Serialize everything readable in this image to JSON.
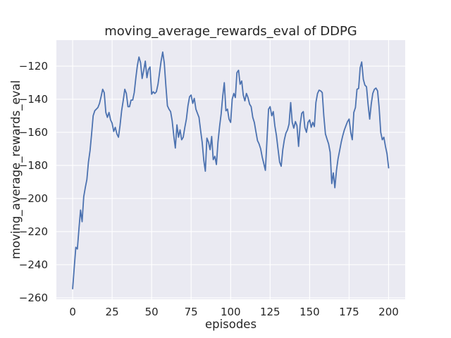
{
  "chart_data": {
    "type": "line",
    "title": "moving_average_rewards_eval of DDPG",
    "xlabel": "episodes",
    "ylabel": "moving_average_rewards_eval",
    "legend": "none",
    "grid": true,
    "x_ticks": [
      0,
      25,
      50,
      75,
      100,
      125,
      150,
      175,
      200
    ],
    "x_tick_labels": [
      "0",
      "25",
      "50",
      "75",
      "100",
      "125",
      "150",
      "175",
      "200"
    ],
    "y_ticks": [
      -260,
      -240,
      -220,
      -200,
      -180,
      -160,
      -140,
      -120
    ],
    "y_tick_labels": [
      "−260",
      "−240",
      "−220",
      "−200",
      "−180",
      "−160",
      "−140",
      "−120"
    ],
    "xlim": [
      -10.3,
      210.5
    ],
    "ylim": [
      -260.9,
      -104.3
    ],
    "series": [
      {
        "name": "moving_average_rewards_eval",
        "x_start": 0,
        "x_step": 1,
        "values": [
          -254.5,
          -242,
          -229.5,
          -230.5,
          -218,
          -207,
          -214,
          -199,
          -193.5,
          -188.5,
          -178,
          -171,
          -161,
          -150,
          -147,
          -146,
          -145,
          -142.5,
          -138.5,
          -134,
          -136,
          -148,
          -151,
          -148,
          -152.5,
          -154.5,
          -159.5,
          -157,
          -161,
          -163,
          -156,
          -147,
          -141,
          -134,
          -136.5,
          -144.5,
          -144.5,
          -140.5,
          -140.5,
          -136,
          -127,
          -119.5,
          -114.5,
          -118,
          -127.5,
          -122.5,
          -117,
          -127,
          -122,
          -120.5,
          -137,
          -135.5,
          -136.5,
          -135.5,
          -131,
          -124,
          -117,
          -111.5,
          -118,
          -132,
          -144,
          -146,
          -147.5,
          -153,
          -162,
          -169.5,
          -155.5,
          -163,
          -158.5,
          -164.5,
          -163,
          -157,
          -152,
          -144,
          -138.5,
          -137.5,
          -142.5,
          -139.5,
          -146,
          -148.5,
          -151,
          -159,
          -166,
          -177,
          -183.5,
          -163.5,
          -166,
          -170.5,
          -162.5,
          -176.5,
          -174.5,
          -179.5,
          -166,
          -156.5,
          -149,
          -138,
          -130,
          -147,
          -146,
          -152,
          -154,
          -140,
          -136.5,
          -139,
          -124,
          -122.5,
          -131,
          -129,
          -137.5,
          -141,
          -136.5,
          -139,
          -143,
          -144.5,
          -151,
          -154,
          -159.5,
          -165,
          -167,
          -170,
          -175,
          -179,
          -183,
          -165,
          -146,
          -144.5,
          -150,
          -147.5,
          -156,
          -162,
          -170,
          -178,
          -180.5,
          -170.5,
          -164.5,
          -160.5,
          -158.5,
          -155,
          -142,
          -154,
          -157.5,
          -153.5,
          -156,
          -168.5,
          -155.5,
          -148.5,
          -147.5,
          -157,
          -160,
          -154,
          -152.5,
          -157,
          -154,
          -156.5,
          -142,
          -136.5,
          -134.5,
          -135,
          -136,
          -150,
          -161,
          -164,
          -167,
          -172,
          -191,
          -184.5,
          -193.5,
          -183,
          -176,
          -171,
          -166,
          -162,
          -158.5,
          -156,
          -153.5,
          -152,
          -160,
          -164.5,
          -148,
          -145,
          -134,
          -133.5,
          -121,
          -117.5,
          -128,
          -131.5,
          -132.5,
          -143,
          -152,
          -143,
          -136.5,
          -134,
          -133.3,
          -135,
          -145,
          -160,
          -164.5,
          -163,
          -168.5,
          -173,
          -181.5
        ]
      }
    ]
  },
  "style": {
    "figure_background": "#ffffff",
    "axes_background": "#eaeaf2",
    "grid_color": "#ffffff",
    "line_color": "#4c72b0",
    "text_color": "#262626"
  }
}
